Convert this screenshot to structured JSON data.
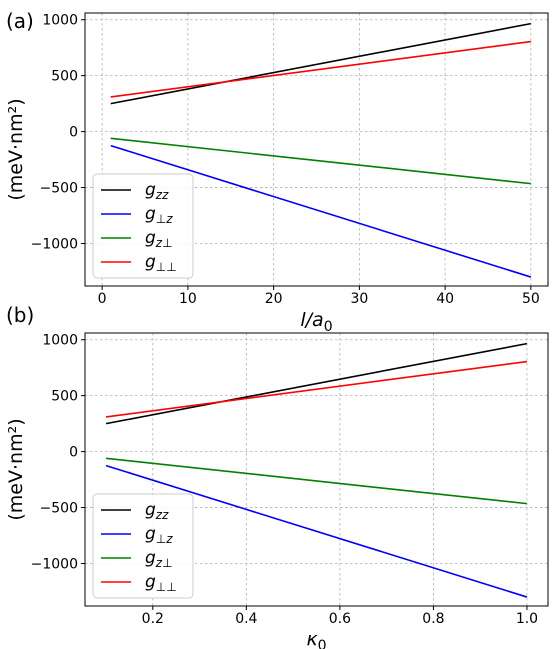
{
  "chart_data": [
    {
      "type": "line",
      "panel_label": "(a)",
      "xlabel": "l/a",
      "xlabel_sub": "0",
      "ylabel": "(meV·nm²)",
      "xlim": [
        -2,
        52
      ],
      "ylim": [
        -1380,
        1060
      ],
      "xticks": [
        0,
        10,
        20,
        30,
        40,
        50
      ],
      "yticks": [
        -1000,
        -500,
        0,
        500,
        1000
      ],
      "grid": true,
      "legend_position": "lower-left",
      "series": [
        {
          "name": "g",
          "sub": "zz",
          "color": "#000000",
          "x": [
            1,
            50
          ],
          "y": [
            250,
            965
          ]
        },
        {
          "name": "g",
          "sub": "⊥z",
          "color": "#0000ff",
          "x": [
            1,
            50
          ],
          "y": [
            -125,
            -1300
          ]
        },
        {
          "name": "g",
          "sub": "z⊥",
          "color": "#008000",
          "x": [
            1,
            50
          ],
          "y": [
            -60,
            -465
          ]
        },
        {
          "name": "g",
          "sub": "⊥⊥",
          "color": "#ff0000",
          "x": [
            1,
            50
          ],
          "y": [
            310,
            805
          ]
        }
      ]
    },
    {
      "type": "line",
      "panel_label": "(b)",
      "xlabel": "κ",
      "xlabel_sub": "0",
      "ylabel": "(meV·nm²)",
      "xlim": [
        0.055,
        1.045
      ],
      "ylim": [
        -1380,
        1060
      ],
      "xticks": [
        0.2,
        0.4,
        0.6,
        0.8,
        1.0
      ],
      "xtick_labels": [
        "0.2",
        "0.4",
        "0.6",
        "0.8",
        "1.0"
      ],
      "yticks": [
        -1000,
        -500,
        0,
        500,
        1000
      ],
      "grid": true,
      "legend_position": "lower-left",
      "series": [
        {
          "name": "g",
          "sub": "zz",
          "color": "#000000",
          "x": [
            0.1,
            1.0
          ],
          "y": [
            250,
            965
          ]
        },
        {
          "name": "g",
          "sub": "⊥z",
          "color": "#0000ff",
          "x": [
            0.1,
            1.0
          ],
          "y": [
            -125,
            -1300
          ]
        },
        {
          "name": "g",
          "sub": "z⊥",
          "color": "#008000",
          "x": [
            0.1,
            1.0
          ],
          "y": [
            -60,
            -465
          ]
        },
        {
          "name": "g",
          "sub": "⊥⊥",
          "color": "#ff0000",
          "x": [
            0.1,
            1.0
          ],
          "y": [
            310,
            805
          ]
        }
      ]
    }
  ]
}
